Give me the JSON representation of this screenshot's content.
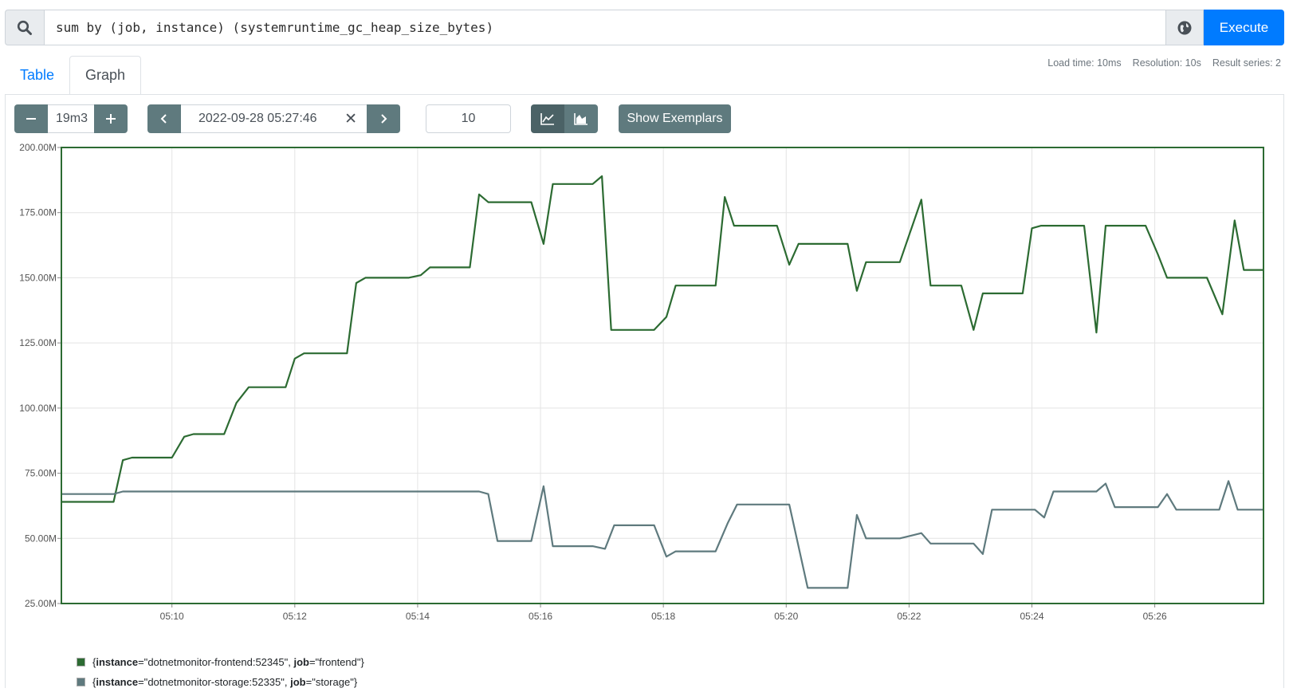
{
  "query": {
    "text": "sum by (job, instance) (systemruntime_gc_heap_size_bytes)",
    "execute_label": "Execute"
  },
  "tabs": {
    "table": "Table",
    "graph": "Graph"
  },
  "stats": {
    "load_time": "Load time: 10ms",
    "resolution": "Resolution: 10s",
    "series": "Result series: 2"
  },
  "controls": {
    "range": "19m3",
    "end_time": "2022-09-28 05:27:46",
    "resolution": "10",
    "exemplars": "Show Exemplars"
  },
  "colors": {
    "frontend": "#2c6b32",
    "storage": "#5f7a7e",
    "execute": "#007bff"
  },
  "legend": [
    {
      "key": "instance",
      "value": "dotnetmonitor-frontend:52345",
      "key2": "job",
      "value2": "frontend",
      "color": "#2c6b32"
    },
    {
      "key": "instance",
      "value": "dotnetmonitor-storage:52335",
      "key2": "job",
      "value2": "storage",
      "color": "#5f7a7e"
    }
  ],
  "chart_data": {
    "type": "line",
    "ylim": [
      25,
      200
    ],
    "yticks": [
      200,
      175,
      150,
      125,
      100,
      75,
      50,
      25
    ],
    "ytick_labels": [
      "200.00M",
      "175.00M",
      "150.00M",
      "125.00M",
      "100.00M",
      "75.00M",
      "50.00M",
      "25.00M"
    ],
    "xlim_minutes": [
      8.2,
      27.77
    ],
    "xticks": [
      10,
      12,
      14,
      16,
      18,
      20,
      22,
      24,
      26
    ],
    "xtick_labels": [
      "05:10",
      "05:12",
      "05:14",
      "05:16",
      "05:18",
      "05:20",
      "05:22",
      "05:24",
      "05:26"
    ],
    "series": [
      {
        "name": "{instance=\"dotnetmonitor-frontend:52345\", job=\"frontend\"}",
        "points": [
          [
            8.2,
            64
          ],
          [
            9.05,
            64
          ],
          [
            9.2,
            80
          ],
          [
            9.35,
            81
          ],
          [
            10.0,
            81
          ],
          [
            10.2,
            89
          ],
          [
            10.35,
            90
          ],
          [
            10.85,
            90
          ],
          [
            11.05,
            102
          ],
          [
            11.25,
            108
          ],
          [
            11.85,
            108
          ],
          [
            12.0,
            119
          ],
          [
            12.15,
            121
          ],
          [
            12.85,
            121
          ],
          [
            13.0,
            148
          ],
          [
            13.15,
            150
          ],
          [
            13.85,
            150
          ],
          [
            14.05,
            151
          ],
          [
            14.2,
            154
          ],
          [
            14.85,
            154
          ],
          [
            15.0,
            182
          ],
          [
            15.15,
            179
          ],
          [
            15.85,
            179
          ],
          [
            16.05,
            163
          ],
          [
            16.2,
            186
          ],
          [
            16.85,
            186
          ],
          [
            17.0,
            189
          ],
          [
            17.15,
            130
          ],
          [
            17.85,
            130
          ],
          [
            18.05,
            135
          ],
          [
            18.2,
            147
          ],
          [
            18.85,
            147
          ],
          [
            19.0,
            181
          ],
          [
            19.15,
            170
          ],
          [
            19.85,
            170
          ],
          [
            20.05,
            155
          ],
          [
            20.2,
            163
          ],
          [
            21.0,
            163
          ],
          [
            21.15,
            145
          ],
          [
            21.3,
            156
          ],
          [
            21.85,
            156
          ],
          [
            22.2,
            180
          ],
          [
            22.35,
            147
          ],
          [
            22.85,
            147
          ],
          [
            23.05,
            130
          ],
          [
            23.2,
            144
          ],
          [
            23.85,
            144
          ],
          [
            24.0,
            169
          ],
          [
            24.15,
            170
          ],
          [
            24.85,
            170
          ],
          [
            25.05,
            129
          ],
          [
            25.2,
            170
          ],
          [
            25.85,
            170
          ],
          [
            26.05,
            159
          ],
          [
            26.2,
            150
          ],
          [
            26.85,
            150
          ],
          [
            27.1,
            136
          ],
          [
            27.3,
            172
          ],
          [
            27.45,
            153
          ],
          [
            27.77,
            153
          ]
        ]
      },
      {
        "name": "{instance=\"dotnetmonitor-storage:52335\", job=\"storage\"}",
        "points": [
          [
            8.2,
            67
          ],
          [
            9.05,
            67
          ],
          [
            9.2,
            68
          ],
          [
            15.0,
            68
          ],
          [
            15.15,
            67
          ],
          [
            15.3,
            49
          ],
          [
            15.85,
            49
          ],
          [
            16.05,
            70
          ],
          [
            16.2,
            47
          ],
          [
            16.85,
            47
          ],
          [
            17.05,
            46
          ],
          [
            17.2,
            55
          ],
          [
            17.85,
            55
          ],
          [
            18.05,
            43
          ],
          [
            18.2,
            45
          ],
          [
            18.85,
            45
          ],
          [
            19.05,
            56
          ],
          [
            19.2,
            63
          ],
          [
            20.05,
            63
          ],
          [
            20.35,
            31
          ],
          [
            21.0,
            31
          ],
          [
            21.15,
            59
          ],
          [
            21.3,
            50
          ],
          [
            21.85,
            50
          ],
          [
            22.2,
            52
          ],
          [
            22.35,
            48
          ],
          [
            23.05,
            48
          ],
          [
            23.2,
            44
          ],
          [
            23.35,
            61
          ],
          [
            24.05,
            61
          ],
          [
            24.2,
            58
          ],
          [
            24.35,
            68
          ],
          [
            25.05,
            68
          ],
          [
            25.2,
            71
          ],
          [
            25.35,
            62
          ],
          [
            26.05,
            62
          ],
          [
            26.2,
            67
          ],
          [
            26.35,
            61
          ],
          [
            27.05,
            61
          ],
          [
            27.2,
            72
          ],
          [
            27.35,
            61
          ],
          [
            27.77,
            61
          ]
        ]
      }
    ]
  }
}
